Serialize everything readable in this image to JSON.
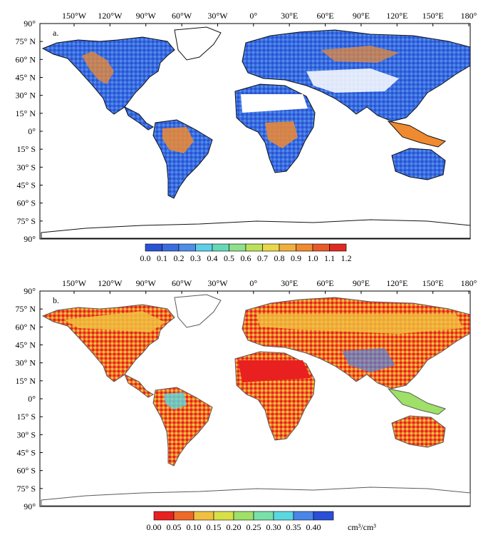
{
  "panels": [
    {
      "label": "a.",
      "lon_ticks": [
        "150°W",
        "120°W",
        "90°W",
        "60°W",
        "30°W",
        "0°",
        "30°E",
        "60°E",
        "90°E",
        "120°E",
        "150°E",
        "180°"
      ],
      "lat_ticks": [
        "90°",
        "75° N",
        "60° N",
        "45° N",
        "30° N",
        "15° N",
        "0°",
        "15° S",
        "30° S",
        "45° S",
        "60° S",
        "75° S",
        "90°"
      ],
      "colorbar": {
        "labels": [
          "0.0",
          "0.1",
          "0.2",
          "0.3",
          "0.4",
          "0.5",
          "0.6",
          "0.7",
          "0.8",
          "0.9",
          "1.0",
          "1.1",
          "1.2"
        ],
        "colors": [
          "#2a52d4",
          "#3a6be0",
          "#4f8ee8",
          "#5cd0e8",
          "#66d8b8",
          "#8ee08a",
          "#bde05a",
          "#e8d84a",
          "#f0b040",
          "#f08a30",
          "#e85a28",
          "#e02a20"
        ],
        "units": ""
      }
    },
    {
      "label": "b.",
      "lon_ticks": [
        "150°W",
        "120°W",
        "90°W",
        "60°W",
        "30°W",
        "0°",
        "30°E",
        "60°E",
        "90°E",
        "120°E",
        "150°E",
        "180°"
      ],
      "lat_ticks": [
        "90°",
        "75° N",
        "60° N",
        "45° N",
        "30° N",
        "15° N",
        "0°",
        "15° S",
        "30° S",
        "45° S",
        "60° S",
        "75° S",
        "90°"
      ],
      "colorbar": {
        "labels": [
          "0.00",
          "0.05",
          "0.10",
          "0.15",
          "0.20",
          "0.25",
          "0.30",
          "0.35",
          "0.40"
        ],
        "colors": [
          "#e82020",
          "#ee6a28",
          "#f0c040",
          "#d8e048",
          "#9ee068",
          "#78e0a8",
          "#5ad8e0",
          "#4a86e8",
          "#2a4ed8"
        ],
        "units": "cm³/cm³"
      }
    }
  ],
  "map_colors": {
    "ocean": "#ffffff",
    "coast": "#111111",
    "coast_b": "#5a5a5a",
    "frame": "#000000"
  }
}
